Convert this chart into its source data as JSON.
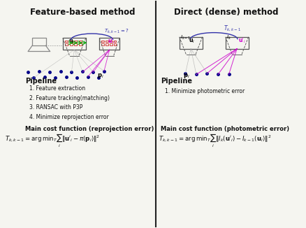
{
  "left_title": "Feature-based method",
  "right_title": "Direct (dense) method",
  "left_pipeline_title": "Pipeline",
  "right_pipeline_title": "Pipeline",
  "left_steps": [
    "1. Feature extraction",
    "2. Feature tracking(matching)",
    "3. RANSAC with P3P",
    "4. Minimize reprojection error"
  ],
  "right_steps": [
    "1. Minimize photometric error"
  ],
  "left_cost_title": "Main cost function (reprojection error)",
  "right_cost_title": "Main cost function (photometric error)",
  "left_formula": "$T_{k,k-1} = \\mathrm{arg\\,min}_{T}\\sum_{i}\\|\\mathbf{u}'_i - \\pi(\\mathbf{p}_i)\\|^2$",
  "right_formula": "$T_{k,k-1} = \\mathrm{arg\\,min}_{T}\\sum_{i}\\|I_k(\\mathbf{u}'_i) - I_{k-1}(\\mathbf{u}_i)\\|^2$",
  "bg_color": "#f5f5f0",
  "divider_color": "#222222",
  "title_color": "#111111",
  "text_color": "#111111",
  "blue_color": "#3333aa",
  "green_color": "#00aa00",
  "magenta_color": "#cc00cc",
  "camera_color": "#888888",
  "dot_color": "#000088"
}
